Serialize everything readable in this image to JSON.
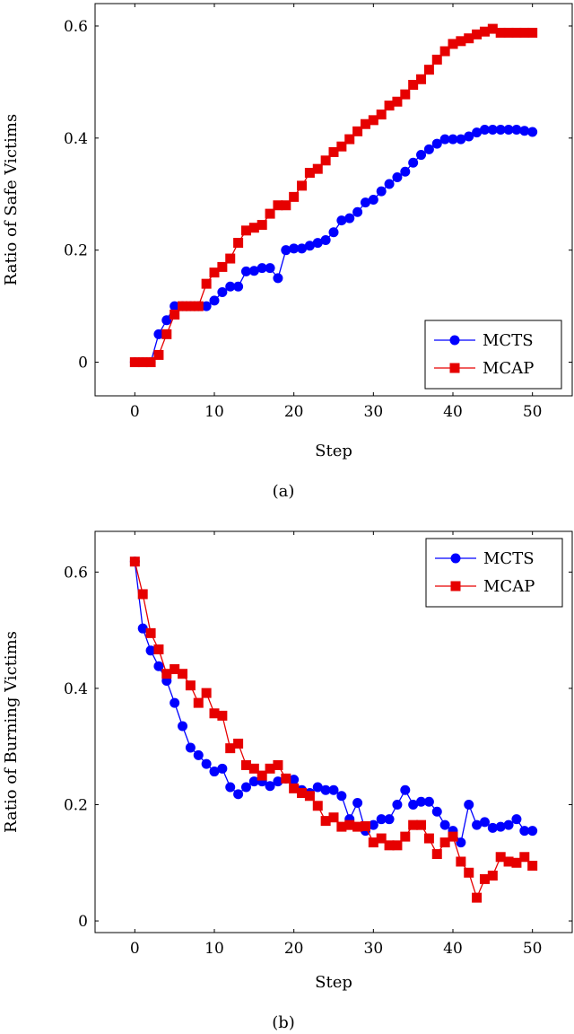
{
  "colors": {
    "mcts": "#0000ff",
    "mcap": "#e60000",
    "axis": "#000000"
  },
  "chart_data": [
    {
      "type": "line",
      "caption": "(a)",
      "xlabel": "Step",
      "ylabel": "Ratio of Safe Victims",
      "xlim": [
        -5,
        55
      ],
      "ylim": [
        -0.06,
        0.64
      ],
      "xticks": [
        0,
        10,
        20,
        30,
        40,
        50
      ],
      "yticks": [
        0,
        0.2,
        0.4,
        0.6
      ],
      "xtick_labels": [
        "0",
        "10",
        "20",
        "30",
        "40",
        "50"
      ],
      "ytick_labels": [
        "0",
        "0.2",
        "0.4",
        "0.6"
      ],
      "legend_position": "bottom-right",
      "legend": [
        "MCTS",
        "MCAP"
      ],
      "series": [
        {
          "name": "MCTS",
          "marker": "circle",
          "color": "#0000ff",
          "x": [
            0,
            1,
            2,
            3,
            4,
            5,
            6,
            7,
            8,
            9,
            10,
            11,
            12,
            13,
            14,
            15,
            16,
            17,
            18,
            19,
            20,
            21,
            22,
            23,
            24,
            25,
            26,
            27,
            28,
            29,
            30,
            31,
            32,
            33,
            34,
            35,
            36,
            37,
            38,
            39,
            40,
            41,
            42,
            43,
            44,
            45,
            46,
            47,
            48,
            49,
            50
          ],
          "values": [
            0,
            0,
            0,
            0.05,
            0.075,
            0.1,
            0.1,
            0.1,
            0.1,
            0.1,
            0.11,
            0.125,
            0.135,
            0.135,
            0.162,
            0.163,
            0.168,
            0.168,
            0.15,
            0.2,
            0.203,
            0.203,
            0.208,
            0.213,
            0.218,
            0.232,
            0.253,
            0.257,
            0.268,
            0.285,
            0.29,
            0.305,
            0.318,
            0.33,
            0.34,
            0.356,
            0.37,
            0.38,
            0.39,
            0.398,
            0.398,
            0.398,
            0.403,
            0.41,
            0.415,
            0.415,
            0.415,
            0.415,
            0.415,
            0.413,
            0.411
          ]
        },
        {
          "name": "MCAP",
          "marker": "square",
          "color": "#e60000",
          "x": [
            0,
            1,
            2,
            3,
            4,
            5,
            6,
            7,
            8,
            9,
            10,
            11,
            12,
            13,
            14,
            15,
            16,
            17,
            18,
            19,
            20,
            21,
            22,
            23,
            24,
            25,
            26,
            27,
            28,
            29,
            30,
            31,
            32,
            33,
            34,
            35,
            36,
            37,
            38,
            39,
            40,
            41,
            42,
            43,
            44,
            45,
            46,
            47,
            48,
            49,
            50
          ],
          "values": [
            0,
            0,
            0,
            0.013,
            0.05,
            0.085,
            0.1,
            0.1,
            0.1,
            0.14,
            0.16,
            0.17,
            0.185,
            0.213,
            0.235,
            0.24,
            0.245,
            0.265,
            0.28,
            0.28,
            0.295,
            0.315,
            0.338,
            0.345,
            0.36,
            0.375,
            0.385,
            0.398,
            0.412,
            0.425,
            0.432,
            0.442,
            0.458,
            0.465,
            0.478,
            0.495,
            0.505,
            0.522,
            0.54,
            0.555,
            0.568,
            0.573,
            0.578,
            0.585,
            0.59,
            0.595,
            0.588,
            0.588,
            0.588,
            0.588,
            0.588
          ]
        }
      ]
    },
    {
      "type": "line",
      "caption": "(b)",
      "xlabel": "Step",
      "ylabel": "Ratio of Burning Victims",
      "xlim": [
        -5,
        55
      ],
      "ylim": [
        -0.02,
        0.67
      ],
      "xticks": [
        0,
        10,
        20,
        30,
        40,
        50
      ],
      "yticks": [
        0,
        0.2,
        0.4,
        0.6
      ],
      "xtick_labels": [
        "0",
        "10",
        "20",
        "30",
        "40",
        "50"
      ],
      "ytick_labels": [
        "0",
        "0.2",
        "0.4",
        "0.6"
      ],
      "legend_position": "top-right",
      "legend": [
        "MCTS",
        "MCAP"
      ],
      "series": [
        {
          "name": "MCTS",
          "marker": "circle",
          "color": "#0000ff",
          "x": [
            0,
            1,
            2,
            3,
            4,
            5,
            6,
            7,
            8,
            9,
            10,
            11,
            12,
            13,
            14,
            15,
            16,
            17,
            18,
            19,
            20,
            21,
            22,
            23,
            24,
            25,
            26,
            27,
            28,
            29,
            30,
            31,
            32,
            33,
            34,
            35,
            36,
            37,
            38,
            39,
            40,
            41,
            42,
            43,
            44,
            45,
            46,
            47,
            48,
            49,
            50
          ],
          "values": [
            0.618,
            0.503,
            0.465,
            0.438,
            0.413,
            0.375,
            0.335,
            0.298,
            0.285,
            0.27,
            0.257,
            0.262,
            0.23,
            0.218,
            0.23,
            0.24,
            0.24,
            0.232,
            0.24,
            0.245,
            0.243,
            0.225,
            0.22,
            0.23,
            0.225,
            0.225,
            0.215,
            0.175,
            0.203,
            0.155,
            0.165,
            0.175,
            0.175,
            0.2,
            0.225,
            0.2,
            0.205,
            0.205,
            0.188,
            0.165,
            0.155,
            0.135,
            0.2,
            0.165,
            0.17,
            0.16,
            0.162,
            0.165,
            0.175,
            0.155,
            0.155
          ]
        },
        {
          "name": "MCAP",
          "marker": "square",
          "color": "#e60000",
          "x": [
            0,
            1,
            2,
            3,
            4,
            5,
            6,
            7,
            8,
            9,
            10,
            11,
            12,
            13,
            14,
            15,
            16,
            17,
            18,
            19,
            20,
            21,
            22,
            23,
            24,
            25,
            26,
            27,
            28,
            29,
            30,
            31,
            32,
            33,
            34,
            35,
            36,
            37,
            38,
            39,
            40,
            41,
            42,
            43,
            44,
            45,
            46,
            47,
            48,
            49,
            50
          ],
          "values": [
            0.618,
            0.562,
            0.495,
            0.467,
            0.425,
            0.433,
            0.425,
            0.405,
            0.375,
            0.392,
            0.357,
            0.353,
            0.297,
            0.305,
            0.268,
            0.262,
            0.25,
            0.262,
            0.268,
            0.245,
            0.228,
            0.22,
            0.215,
            0.198,
            0.172,
            0.178,
            0.162,
            0.165,
            0.162,
            0.163,
            0.135,
            0.142,
            0.13,
            0.13,
            0.145,
            0.165,
            0.165,
            0.142,
            0.115,
            0.135,
            0.145,
            0.102,
            0.083,
            0.04,
            0.072,
            0.078,
            0.11,
            0.102,
            0.1,
            0.11,
            0.095
          ]
        }
      ]
    }
  ]
}
